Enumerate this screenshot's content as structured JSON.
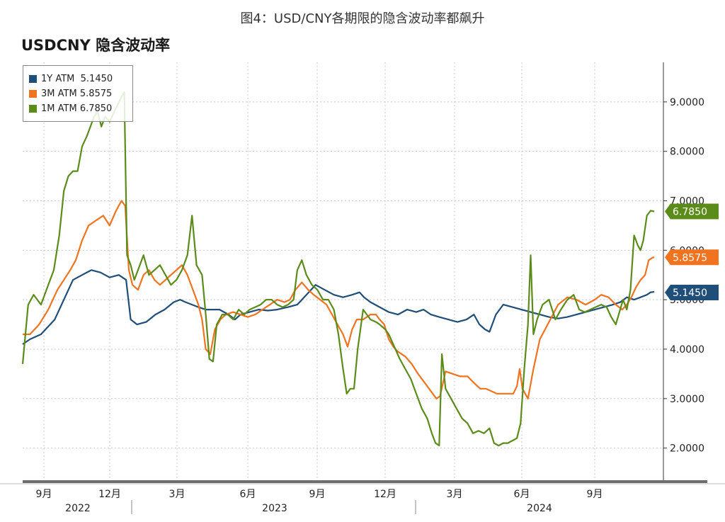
{
  "figure_caption": "图4：USD/CNY各期限的隐含波动率都飙升",
  "chart_data": {
    "type": "line",
    "title": "USDCNY 隐含波动率",
    "ylim": [
      1.35,
      9.8
    ],
    "y_ticks": [
      2,
      3,
      4,
      5,
      6,
      7,
      8,
      9
    ],
    "y_tick_labels": [
      "2.0000",
      "3.0000",
      "4.0000",
      "5.0000",
      "6.0000",
      "7.0000",
      "8.0000",
      "9.0000"
    ],
    "x_tick_labels": [
      "9月",
      "12月",
      "3月",
      "6月",
      "9月",
      "12月",
      "3月",
      "6月",
      "9月"
    ],
    "year_labels": [
      "2022",
      "2023",
      "2024"
    ],
    "grid": true,
    "legend_position": "top-left",
    "series": [
      {
        "name": "1Y ATM",
        "legend_value": "5.1450",
        "last_label": "5.1450",
        "color": "#1f4e79",
        "values": [
          [
            0,
            4.1
          ],
          [
            8,
            4.2
          ],
          [
            20,
            4.3
          ],
          [
            35,
            4.6
          ],
          [
            45,
            5.0
          ],
          [
            55,
            5.4
          ],
          [
            65,
            5.5
          ],
          [
            75,
            5.6
          ],
          [
            85,
            5.55
          ],
          [
            95,
            5.45
          ],
          [
            105,
            5.5
          ],
          [
            113,
            5.4
          ],
          [
            118,
            4.6
          ],
          [
            125,
            4.5
          ],
          [
            135,
            4.55
          ],
          [
            145,
            4.7
          ],
          [
            155,
            4.8
          ],
          [
            165,
            4.95
          ],
          [
            172,
            5.0
          ],
          [
            178,
            4.95
          ],
          [
            185,
            4.9
          ],
          [
            192,
            4.85
          ],
          [
            200,
            4.8
          ],
          [
            215,
            4.8
          ],
          [
            225,
            4.7
          ],
          [
            232,
            4.6
          ],
          [
            238,
            4.7
          ],
          [
            248,
            4.75
          ],
          [
            258,
            4.8
          ],
          [
            268,
            4.78
          ],
          [
            278,
            4.8
          ],
          [
            290,
            4.85
          ],
          [
            300,
            4.9
          ],
          [
            310,
            5.1
          ],
          [
            320,
            5.3
          ],
          [
            330,
            5.2
          ],
          [
            340,
            5.1
          ],
          [
            350,
            5.05
          ],
          [
            360,
            5.1
          ],
          [
            368,
            5.15
          ],
          [
            373,
            5.05
          ],
          [
            380,
            4.95
          ],
          [
            390,
            4.85
          ],
          [
            400,
            4.75
          ],
          [
            410,
            4.7
          ],
          [
            420,
            4.8
          ],
          [
            430,
            4.75
          ],
          [
            438,
            4.8
          ],
          [
            446,
            4.7
          ],
          [
            455,
            4.65
          ],
          [
            465,
            4.6
          ],
          [
            475,
            4.55
          ],
          [
            485,
            4.6
          ],
          [
            493,
            4.7
          ],
          [
            499,
            4.5
          ],
          [
            505,
            4.4
          ],
          [
            510,
            4.35
          ],
          [
            517,
            4.7
          ],
          [
            525,
            4.9
          ],
          [
            535,
            4.85
          ],
          [
            545,
            4.8
          ],
          [
            555,
            4.75
          ],
          [
            565,
            4.7
          ],
          [
            575,
            4.65
          ],
          [
            585,
            4.62
          ],
          [
            595,
            4.65
          ],
          [
            605,
            4.7
          ],
          [
            615,
            4.75
          ],
          [
            625,
            4.8
          ],
          [
            635,
            4.85
          ],
          [
            645,
            4.9
          ],
          [
            653,
            4.95
          ],
          [
            660,
            5.05
          ],
          [
            668,
            5.0
          ],
          [
            675,
            5.05
          ],
          [
            682,
            5.1
          ],
          [
            686,
            5.15
          ],
          [
            690,
            5.16
          ]
        ]
      },
      {
        "name": "3M ATM",
        "legend_value": "5.8575",
        "last_label": "5.8575",
        "color": "#f07320",
        "values": [
          [
            0,
            4.3
          ],
          [
            8,
            4.3
          ],
          [
            18,
            4.5
          ],
          [
            28,
            4.8
          ],
          [
            38,
            5.2
          ],
          [
            45,
            5.4
          ],
          [
            52,
            5.6
          ],
          [
            58,
            5.8
          ],
          [
            65,
            6.2
          ],
          [
            72,
            6.5
          ],
          [
            80,
            6.6
          ],
          [
            88,
            6.7
          ],
          [
            95,
            6.5
          ],
          [
            102,
            6.8
          ],
          [
            108,
            7.0
          ],
          [
            112,
            6.9
          ],
          [
            116,
            5.6
          ],
          [
            120,
            5.3
          ],
          [
            126,
            5.2
          ],
          [
            132,
            5.5
          ],
          [
            138,
            5.6
          ],
          [
            144,
            5.4
          ],
          [
            150,
            5.3
          ],
          [
            156,
            5.4
          ],
          [
            162,
            5.5
          ],
          [
            168,
            5.6
          ],
          [
            174,
            5.7
          ],
          [
            180,
            5.5
          ],
          [
            186,
            5.2
          ],
          [
            192,
            4.9
          ],
          [
            196,
            4.6
          ],
          [
            200,
            4.0
          ],
          [
            205,
            3.9
          ],
          [
            210,
            4.4
          ],
          [
            216,
            4.6
          ],
          [
            222,
            4.7
          ],
          [
            230,
            4.75
          ],
          [
            238,
            4.7
          ],
          [
            246,
            4.65
          ],
          [
            254,
            4.7
          ],
          [
            262,
            4.8
          ],
          [
            270,
            4.9
          ],
          [
            278,
            5.0
          ],
          [
            286,
            4.95
          ],
          [
            292,
            5.0
          ],
          [
            298,
            5.2
          ],
          [
            305,
            5.35
          ],
          [
            312,
            5.2
          ],
          [
            318,
            5.1
          ],
          [
            325,
            5.0
          ],
          [
            332,
            4.9
          ],
          [
            338,
            4.7
          ],
          [
            344,
            4.5
          ],
          [
            350,
            4.3
          ],
          [
            355,
            4.05
          ],
          [
            360,
            4.4
          ],
          [
            365,
            4.6
          ],
          [
            372,
            4.6
          ],
          [
            380,
            4.7
          ],
          [
            386,
            4.7
          ],
          [
            390,
            4.6
          ],
          [
            395,
            4.5
          ],
          [
            400,
            4.2
          ],
          [
            405,
            4.05
          ],
          [
            410,
            3.95
          ],
          [
            418,
            3.85
          ],
          [
            425,
            3.7
          ],
          [
            432,
            3.5
          ],
          [
            440,
            3.3
          ],
          [
            446,
            3.15
          ],
          [
            452,
            3.0
          ],
          [
            456,
            3.05
          ],
          [
            462,
            3.55
          ],
          [
            470,
            3.5
          ],
          [
            478,
            3.45
          ],
          [
            486,
            3.45
          ],
          [
            494,
            3.3
          ],
          [
            500,
            3.2
          ],
          [
            506,
            3.2
          ],
          [
            512,
            3.15
          ],
          [
            518,
            3.1
          ],
          [
            524,
            3.1
          ],
          [
            530,
            3.1
          ],
          [
            536,
            3.1
          ],
          [
            540,
            3.25
          ],
          [
            543,
            3.6
          ],
          [
            546,
            3.2
          ],
          [
            552,
            3.0
          ],
          [
            558,
            3.6
          ],
          [
            565,
            4.2
          ],
          [
            575,
            4.55
          ],
          [
            585,
            4.9
          ],
          [
            595,
            5.05
          ],
          [
            605,
            5.0
          ],
          [
            615,
            4.9
          ],
          [
            625,
            5.0
          ],
          [
            632,
            5.1
          ],
          [
            640,
            5.05
          ],
          [
            648,
            4.9
          ],
          [
            655,
            4.8
          ],
          [
            660,
            4.9
          ],
          [
            665,
            5.05
          ],
          [
            670,
            5.25
          ],
          [
            675,
            5.4
          ],
          [
            680,
            5.5
          ],
          [
            684,
            5.8
          ],
          [
            688,
            5.85
          ],
          [
            690,
            5.86
          ]
        ]
      },
      {
        "name": "1M ATM",
        "legend_value": "6.7850",
        "last_label": "6.7850",
        "color": "#5b8c1a",
        "values": [
          [
            0,
            3.7
          ],
          [
            6,
            4.9
          ],
          [
            12,
            5.1
          ],
          [
            20,
            4.9
          ],
          [
            28,
            5.3
          ],
          [
            34,
            5.6
          ],
          [
            40,
            6.3
          ],
          [
            45,
            7.2
          ],
          [
            50,
            7.5
          ],
          [
            55,
            7.6
          ],
          [
            60,
            7.6
          ],
          [
            65,
            8.1
          ],
          [
            70,
            8.3
          ],
          [
            74,
            8.5
          ],
          [
            78,
            8.7
          ],
          [
            82,
            8.8
          ],
          [
            86,
            8.5
          ],
          [
            90,
            8.7
          ],
          [
            95,
            8.6
          ],
          [
            100,
            8.8
          ],
          [
            104,
            8.95
          ],
          [
            108,
            9.1
          ],
          [
            111,
            9.2
          ],
          [
            114,
            5.9
          ],
          [
            118,
            5.7
          ],
          [
            122,
            5.4
          ],
          [
            126,
            5.6
          ],
          [
            132,
            5.9
          ],
          [
            138,
            5.5
          ],
          [
            144,
            5.6
          ],
          [
            150,
            5.7
          ],
          [
            156,
            5.5
          ],
          [
            162,
            5.3
          ],
          [
            168,
            5.4
          ],
          [
            174,
            5.6
          ],
          [
            180,
            5.9
          ],
          [
            185,
            6.7
          ],
          [
            190,
            5.7
          ],
          [
            196,
            5.5
          ],
          [
            200,
            4.7
          ],
          [
            204,
            3.8
          ],
          [
            208,
            3.75
          ],
          [
            212,
            4.5
          ],
          [
            218,
            4.7
          ],
          [
            224,
            4.7
          ],
          [
            230,
            4.6
          ],
          [
            236,
            4.8
          ],
          [
            242,
            4.7
          ],
          [
            248,
            4.8
          ],
          [
            254,
            4.85
          ],
          [
            260,
            4.9
          ],
          [
            266,
            5.0
          ],
          [
            272,
            5.0
          ],
          [
            278,
            4.9
          ],
          [
            284,
            4.85
          ],
          [
            290,
            4.9
          ],
          [
            296,
            5.0
          ],
          [
            300,
            5.6
          ],
          [
            305,
            5.8
          ],
          [
            310,
            5.5
          ],
          [
            316,
            5.3
          ],
          [
            322,
            5.2
          ],
          [
            328,
            5.0
          ],
          [
            334,
            5.0
          ],
          [
            340,
            4.8
          ],
          [
            345,
            4.3
          ],
          [
            350,
            3.6
          ],
          [
            354,
            3.1
          ],
          [
            358,
            3.2
          ],
          [
            362,
            3.2
          ],
          [
            366,
            4.0
          ],
          [
            372,
            4.8
          ],
          [
            380,
            4.6
          ],
          [
            386,
            4.55
          ],
          [
            390,
            4.5
          ],
          [
            396,
            4.4
          ],
          [
            400,
            4.3
          ],
          [
            406,
            4.05
          ],
          [
            412,
            3.8
          ],
          [
            418,
            3.6
          ],
          [
            424,
            3.4
          ],
          [
            430,
            3.1
          ],
          [
            436,
            2.8
          ],
          [
            442,
            2.6
          ],
          [
            447,
            2.3
          ],
          [
            451,
            2.1
          ],
          [
            455,
            2.05
          ],
          [
            458,
            3.9
          ],
          [
            462,
            3.2
          ],
          [
            468,
            3.0
          ],
          [
            474,
            2.8
          ],
          [
            480,
            2.6
          ],
          [
            486,
            2.5
          ],
          [
            492,
            2.3
          ],
          [
            498,
            2.35
          ],
          [
            504,
            2.3
          ],
          [
            510,
            2.4
          ],
          [
            515,
            2.1
          ],
          [
            520,
            2.05
          ],
          [
            525,
            2.1
          ],
          [
            530,
            2.1
          ],
          [
            535,
            2.15
          ],
          [
            540,
            2.2
          ],
          [
            544,
            2.5
          ],
          [
            548,
            3.6
          ],
          [
            552,
            4.5
          ],
          [
            555,
            5.9
          ],
          [
            558,
            4.3
          ],
          [
            562,
            4.6
          ],
          [
            568,
            4.9
          ],
          [
            575,
            5.0
          ],
          [
            582,
            4.6
          ],
          [
            588,
            4.8
          ],
          [
            595,
            5.0
          ],
          [
            602,
            5.1
          ],
          [
            608,
            4.8
          ],
          [
            614,
            4.75
          ],
          [
            620,
            4.8
          ],
          [
            626,
            4.85
          ],
          [
            632,
            4.9
          ],
          [
            638,
            4.85
          ],
          [
            643,
            4.65
          ],
          [
            648,
            4.5
          ],
          [
            652,
            4.75
          ],
          [
            656,
            5.0
          ],
          [
            660,
            4.8
          ],
          [
            664,
            5.2
          ],
          [
            668,
            6.3
          ],
          [
            672,
            6.1
          ],
          [
            675,
            6.0
          ],
          [
            678,
            6.2
          ],
          [
            682,
            6.7
          ],
          [
            686,
            6.8
          ],
          [
            690,
            6.785
          ]
        ]
      }
    ]
  }
}
